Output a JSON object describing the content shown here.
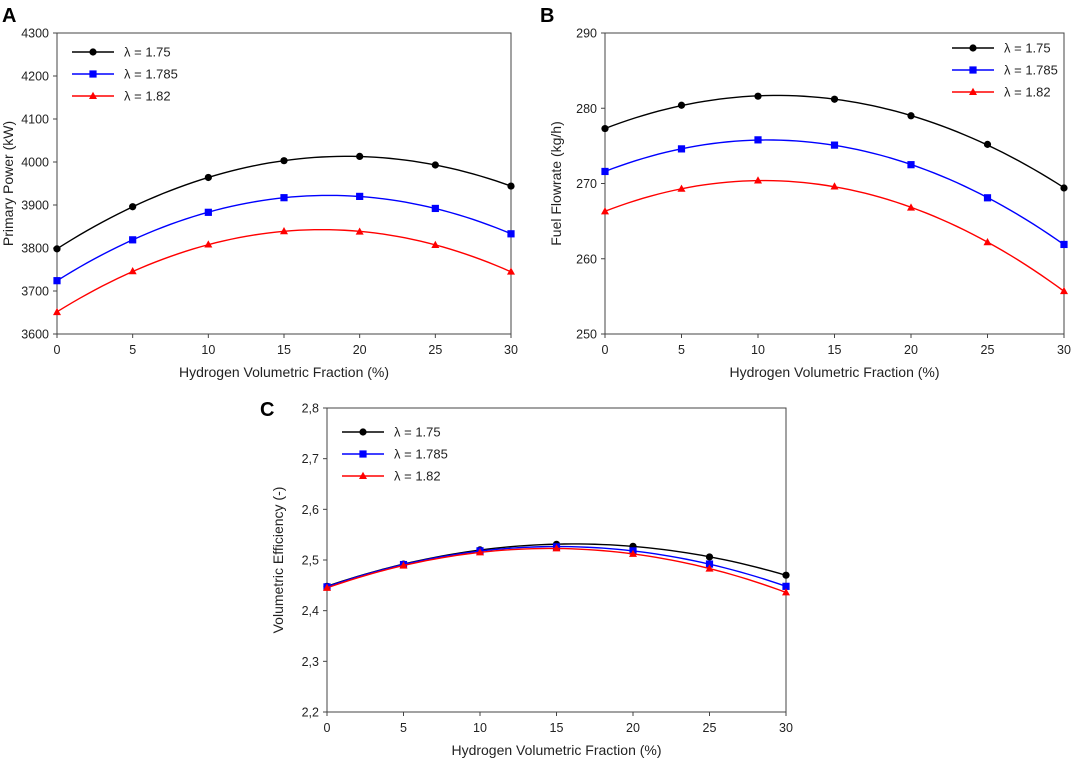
{
  "figure": {
    "panels": [
      "A",
      "B",
      "C"
    ]
  },
  "chart_data": [
    {
      "panel": "A",
      "type": "line",
      "title": "",
      "xlabel": "Hydrogen Volumetric Fraction (%)",
      "ylabel": "Primary Power (kW)",
      "x": [
        0,
        5,
        10,
        15,
        20,
        25,
        30
      ],
      "xlim": [
        0,
        30
      ],
      "ylim": [
        3600,
        4300
      ],
      "xticks": [
        0,
        5,
        10,
        15,
        20,
        25,
        30
      ],
      "yticks": [
        3600,
        3700,
        3800,
        3900,
        4000,
        4100,
        4200,
        4300
      ],
      "ytick_labels": [
        "3600",
        "3700",
        "3800",
        "3900",
        "4000",
        "4100",
        "4200",
        "4300"
      ],
      "grid": false,
      "legend_position": "top-left",
      "series": [
        {
          "name": "λ = 1.75",
          "color": "#000000",
          "marker": "circle",
          "values": [
            3798,
            3896,
            3964,
            4003,
            4013,
            3993,
            3944
          ]
        },
        {
          "name": "λ = 1.785",
          "color": "#0000ff",
          "marker": "square",
          "values": [
            3724,
            3819,
            3883,
            3917,
            3920,
            3892,
            3833
          ]
        },
        {
          "name": "λ = 1.82",
          "color": "#ff0000",
          "marker": "triangle",
          "values": [
            3651,
            3746,
            3808,
            3839,
            3838,
            3807,
            3745
          ]
        }
      ]
    },
    {
      "panel": "B",
      "type": "line",
      "title": "",
      "xlabel": "Hydrogen Volumetric Fraction (%)",
      "ylabel": "Fuel Flowrate (kg/h)",
      "x": [
        0,
        5,
        10,
        15,
        20,
        25,
        30
      ],
      "xlim": [
        0,
        30
      ],
      "ylim": [
        250,
        290
      ],
      "xticks": [
        0,
        5,
        10,
        15,
        20,
        25,
        30
      ],
      "yticks": [
        250,
        260,
        270,
        280,
        290
      ],
      "ytick_labels": [
        "250",
        "260",
        "270",
        "280",
        "290"
      ],
      "grid": false,
      "legend_position": "top-right",
      "series": [
        {
          "name": "λ = 1.75",
          "color": "#000000",
          "marker": "circle",
          "values": [
            277.3,
            280.4,
            281.6,
            281.2,
            279.0,
            275.2,
            269.4
          ]
        },
        {
          "name": "λ = 1.785",
          "color": "#0000ff",
          "marker": "square",
          "values": [
            271.6,
            274.6,
            275.8,
            275.1,
            272.5,
            268.1,
            261.9
          ]
        },
        {
          "name": "λ = 1.82",
          "color": "#ff0000",
          "marker": "triangle",
          "values": [
            266.3,
            269.3,
            270.4,
            269.6,
            266.8,
            262.2,
            255.7
          ]
        }
      ]
    },
    {
      "panel": "C",
      "type": "line",
      "title": "",
      "xlabel": "Hydrogen Volumetric Fraction (%)",
      "ylabel": "Volumetric Efficiency (-)",
      "x": [
        0,
        5,
        10,
        15,
        20,
        25,
        30
      ],
      "xlim": [
        0,
        30
      ],
      "ylim": [
        2.2,
        2.8
      ],
      "xticks": [
        0,
        5,
        10,
        15,
        20,
        25,
        30
      ],
      "yticks": [
        2.2,
        2.3,
        2.4,
        2.5,
        2.6,
        2.7,
        2.8
      ],
      "ytick_labels": [
        "2,2",
        "2,3",
        "2,4",
        "2,5",
        "2,6",
        "2,7",
        "2,8"
      ],
      "grid": false,
      "legend_position": "top-left",
      "series": [
        {
          "name": "λ = 1.75",
          "color": "#000000",
          "marker": "circle",
          "values": [
            2.448,
            2.492,
            2.52,
            2.531,
            2.527,
            2.506,
            2.47
          ]
        },
        {
          "name": "λ = 1.785",
          "color": "#0000ff",
          "marker": "square",
          "values": [
            2.447,
            2.491,
            2.518,
            2.526,
            2.518,
            2.492,
            2.448
          ]
        },
        {
          "name": "λ = 1.82",
          "color": "#ff0000",
          "marker": "triangle",
          "values": [
            2.445,
            2.489,
            2.515,
            2.523,
            2.512,
            2.483,
            2.436
          ]
        }
      ]
    }
  ]
}
